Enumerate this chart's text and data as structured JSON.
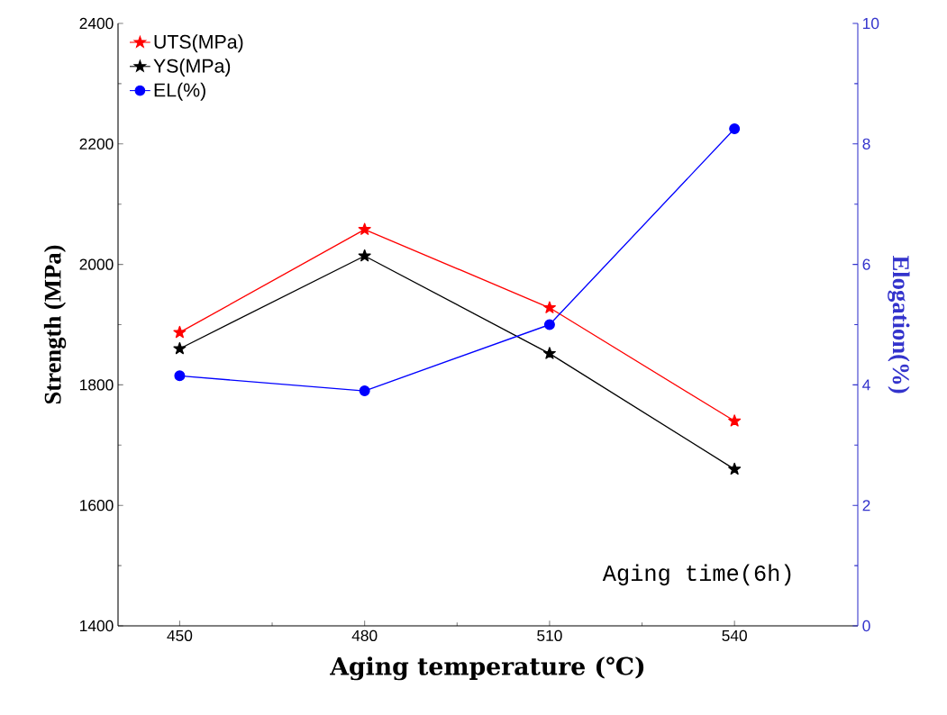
{
  "chart_data": {
    "type": "line",
    "xlabel": "Aging temperature (℃)",
    "ylabel": "Strength (MPa)",
    "y2label": "Elogation(%)",
    "annotations": [
      "Aging time(6h)"
    ],
    "x": [
      450,
      480,
      510,
      540
    ],
    "xlim": [
      440,
      560
    ],
    "xticks": [
      450,
      480,
      510,
      540
    ],
    "ylim": [
      1400,
      2400
    ],
    "yticks": [
      1400,
      1600,
      1800,
      2000,
      2200,
      2400
    ],
    "y2lim": [
      0,
      10
    ],
    "y2ticks": [
      0,
      2,
      4,
      6,
      8,
      10
    ],
    "legend": "top left",
    "grid": false,
    "series": [
      {
        "name": "UTS(MPa)",
        "color": "#ff0000",
        "marker": "star",
        "values": [
          1887,
          2058,
          1928,
          1740
        ]
      },
      {
        "name": "YS(MPa)",
        "color": "#000000",
        "marker": "star",
        "values": [
          1860,
          2014,
          1852,
          1660
        ]
      },
      {
        "name": "EL(%)",
        "color": "#0000ff",
        "marker": "circle",
        "axis": "y2",
        "values": [
          4.15,
          3.9,
          5.0,
          8.25
        ]
      }
    ]
  }
}
